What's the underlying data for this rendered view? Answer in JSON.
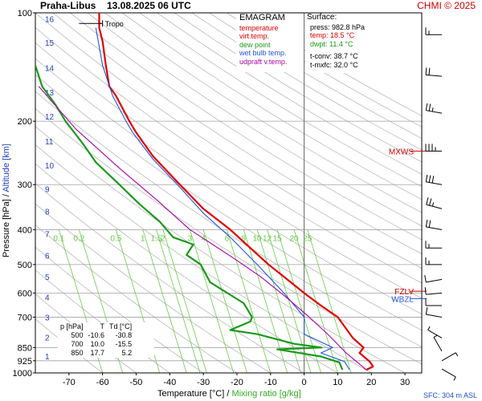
{
  "header": {
    "station": "Praha-Libus",
    "datetime": "13.08.2025 06 UTC",
    "credit": "CHMI © 2025"
  },
  "legend": {
    "title": "EMAGRAM",
    "items": [
      {
        "label": "temperature",
        "color": "#e00000"
      },
      {
        "label": "virt.temp.",
        "color": "#e00000"
      },
      {
        "label": "dew point",
        "color": "#1a9a1a"
      },
      {
        "label": "wet bulb temp.",
        "color": "#2255dd"
      },
      {
        "label": "udpraft v.temp.",
        "color": "#aa00aa"
      }
    ]
  },
  "surface": {
    "title": "Surface:",
    "lines": [
      {
        "text": "press: 982.8 hPa",
        "color": "#000000"
      },
      {
        "text": "temp: 18.5 °C",
        "color": "#e00000"
      },
      {
        "text": "dwpt: 11.4 °C",
        "color": "#1a9a1a"
      },
      {
        "text": "t-conv: 38.7 °C",
        "color": "#000000"
      },
      {
        "text": "t-mxfc: 32.0 °C",
        "color": "#000000"
      }
    ]
  },
  "table": {
    "headers": [
      "p [hPa]",
      "T",
      "Td [°C]"
    ],
    "rows": [
      [
        "500",
        "-10.6",
        "-30.8"
      ],
      [
        "700",
        "10.0",
        "-15.5"
      ],
      [
        "850",
        "17.7",
        "5.2"
      ]
    ]
  },
  "axis_titles": {
    "x_main": "Temperature [°C]",
    "x_sep": " / ",
    "x_mix": "Mixing ratio [g/kg]",
    "y_main": "Pressure [hPa]",
    "y_sep": " / ",
    "y_alt": "Altitude [km]"
  },
  "sfc_label": "SFC: 304 m ASL",
  "colors": {
    "temperature": "#e00000",
    "dewpoint": "#1a9a1a",
    "wetbulb": "#2255dd",
    "parcel": "#aa00aa",
    "mixing": "#66cc44",
    "isobar": "#a0a0a0",
    "dryadiabat": "#b8b8b8",
    "annotation": "#cc0000",
    "altitude": "#1f3fc0"
  },
  "chart_data": {
    "type": "line",
    "title": "EMAGRAM",
    "xlabel": "Temperature [°C] / Mixing ratio [g/kg]",
    "ylabel": "Pressure [hPa] / Altitude [km]",
    "xlim": [
      -80,
      35
    ],
    "ylim": [
      1000,
      100
    ],
    "y_scale": "log",
    "x_ticks": [
      -70,
      -60,
      -50,
      -40,
      -30,
      -20,
      -10,
      0,
      10,
      20,
      30
    ],
    "y_ticks": [
      100,
      200,
      300,
      400,
      500,
      600,
      700,
      850,
      925,
      1000
    ],
    "altitude_ticks": [
      {
        "km": 1,
        "p": 897
      },
      {
        "km": 2,
        "p": 795
      },
      {
        "km": 3,
        "p": 701
      },
      {
        "km": 4,
        "p": 616
      },
      {
        "km": 5,
        "p": 540
      },
      {
        "km": 6,
        "p": 472
      },
      {
        "km": 7,
        "p": 411
      },
      {
        "km": 8,
        "p": 356
      },
      {
        "km": 9,
        "p": 308
      },
      {
        "km": 10,
        "p": 265
      },
      {
        "km": 11,
        "p": 227
      },
      {
        "km": 12,
        "p": 194
      },
      {
        "km": 13,
        "p": 166
      },
      {
        "km": 14,
        "p": 142
      },
      {
        "km": 15,
        "p": 121
      },
      {
        "km": 16,
        "p": 104
      }
    ],
    "mixing_ratio_labels": [
      "0.1",
      "0.2",
      "0.5",
      "1",
      "1.5",
      "2",
      "3",
      "4",
      "6",
      "8",
      "10",
      "12",
      "15",
      "20",
      "25"
    ],
    "mixing_ratio_label_x": [
      -73,
      -67,
      -56,
      -48,
      -44,
      -42,
      -34,
      -30,
      -23,
      -18,
      -14,
      -11,
      -8,
      -3,
      1
    ],
    "series": [
      {
        "name": "temperature",
        "color": "#e00000",
        "points": [
          [
            18.5,
            980
          ],
          [
            20.5,
            960
          ],
          [
            19.5,
            930
          ],
          [
            16.5,
            880
          ],
          [
            17.7,
            850
          ],
          [
            14.5,
            800
          ],
          [
            10,
            700
          ],
          [
            5,
            650
          ],
          [
            0,
            600
          ],
          [
            -4,
            560
          ],
          [
            -10.6,
            500
          ],
          [
            -16,
            450
          ],
          [
            -22,
            400
          ],
          [
            -30,
            350
          ],
          [
            -37,
            300
          ],
          [
            -45,
            250
          ],
          [
            -50,
            215
          ],
          [
            -52,
            200
          ],
          [
            -56,
            170
          ],
          [
            -58,
            160
          ],
          [
            -59,
            140
          ],
          [
            -60,
            120
          ],
          [
            -61,
            110
          ],
          [
            -61,
            100
          ]
        ]
      },
      {
        "name": "dew point",
        "color": "#1a9a1a",
        "points": [
          [
            11.4,
            980
          ],
          [
            10.5,
            935
          ],
          [
            5,
            900
          ],
          [
            -8,
            860
          ],
          [
            5.2,
            850
          ],
          [
            -3,
            830
          ],
          [
            -14,
            780
          ],
          [
            -22,
            760
          ],
          [
            -16,
            720
          ],
          [
            -15.5,
            700
          ],
          [
            -18,
            640
          ],
          [
            -28,
            560
          ],
          [
            -30.8,
            500
          ],
          [
            -35,
            470
          ],
          [
            -33,
            440
          ],
          [
            -39,
            420
          ],
          [
            -43,
            380
          ],
          [
            -49,
            340
          ],
          [
            -55,
            300
          ],
          [
            -62,
            260
          ],
          [
            -66,
            230
          ],
          [
            -71,
            200
          ],
          [
            -74,
            180
          ],
          [
            -78,
            160
          ],
          [
            -80,
            140
          ]
        ]
      },
      {
        "name": "wet bulb temp.",
        "color": "#2255dd",
        "points": [
          [
            13.5,
            980
          ],
          [
            12,
            930
          ],
          [
            5,
            880
          ],
          [
            8.5,
            850
          ],
          [
            0,
            780
          ],
          [
            0,
            700
          ],
          [
            -6,
            600
          ],
          [
            -14,
            500
          ],
          [
            -22,
            420
          ],
          [
            -30,
            360
          ],
          [
            -37,
            305
          ],
          [
            -45,
            255
          ],
          [
            -51,
            215
          ],
          [
            -53,
            200
          ],
          [
            -57,
            170
          ],
          [
            -60,
            140
          ],
          [
            -62,
            110
          ]
        ]
      },
      {
        "name": "udpraft v.temp.",
        "color": "#aa00aa",
        "points": [
          [
            18.5,
            980
          ],
          [
            12.5,
            880
          ],
          [
            7,
            780
          ],
          [
            1.5,
            700
          ],
          [
            -5,
            620
          ],
          [
            -13,
            540
          ],
          [
            -21,
            480
          ],
          [
            -34,
            400
          ],
          [
            -44,
            330
          ],
          [
            -55,
            270
          ],
          [
            -68,
            210
          ],
          [
            -79,
            160
          ]
        ]
      }
    ],
    "annotations": [
      {
        "label": "Tropo",
        "p": 107,
        "t": -60
      },
      {
        "label": "MXWS",
        "p": 242
      },
      {
        "label": "FZLV",
        "p": 593
      },
      {
        "label": "WBZL",
        "p": 622
      }
    ],
    "wind_profile": [
      {
        "p": 115,
        "dir": 270,
        "kt": 15
      },
      {
        "p": 150,
        "dir": 275,
        "kt": 20
      },
      {
        "p": 190,
        "dir": 280,
        "kt": 25
      },
      {
        "p": 242,
        "dir": 270,
        "kt": 35
      },
      {
        "p": 300,
        "dir": 280,
        "kt": 30
      },
      {
        "p": 350,
        "dir": 285,
        "kt": 25
      },
      {
        "p": 400,
        "dir": 280,
        "kt": 20
      },
      {
        "p": 450,
        "dir": 270,
        "kt": 15
      },
      {
        "p": 500,
        "dir": 270,
        "kt": 15
      },
      {
        "p": 550,
        "dir": 260,
        "kt": 10
      },
      {
        "p": 600,
        "dir": 265,
        "kt": 10
      },
      {
        "p": 650,
        "dir": 270,
        "kt": 10
      },
      {
        "p": 700,
        "dir": 280,
        "kt": 10
      },
      {
        "p": 800,
        "dir": 300,
        "kt": 5
      },
      {
        "p": 870,
        "dir": 330,
        "kt": 5
      },
      {
        "p": 925,
        "dir": 60,
        "kt": 5
      },
      {
        "p": 975,
        "dir": 120,
        "kt": 5
      }
    ]
  }
}
